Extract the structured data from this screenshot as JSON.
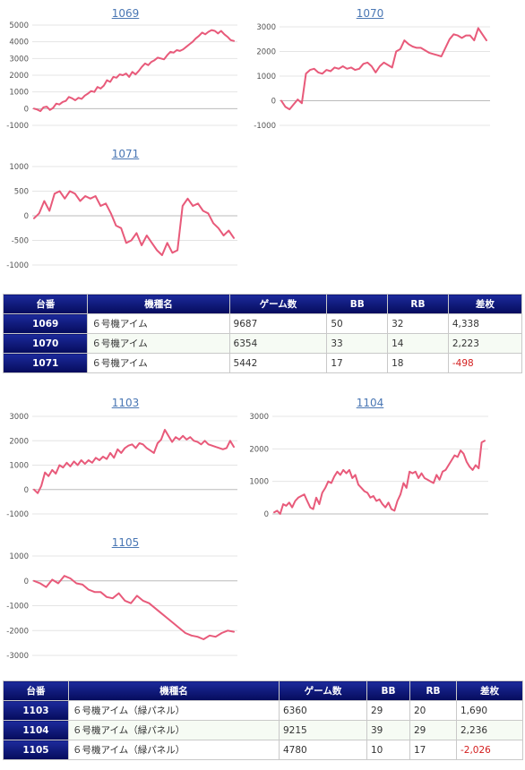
{
  "colors": {
    "line": "#e85a7a",
    "header_bg": "#0b1570",
    "negative": "#d31e1e",
    "title_link": "#4a77b4"
  },
  "section1": {
    "charts": [
      {
        "title": "1069",
        "chart_data": {
          "type": "line",
          "title": "1069",
          "ylim": [
            -1000,
            5000
          ],
          "ticks": [
            "5000",
            "4000",
            "3000",
            "2000",
            "1000",
            "0",
            "-1000"
          ],
          "y": [
            0,
            -50,
            -150,
            80,
            120,
            -80,
            40,
            300,
            250,
            400,
            460,
            700,
            620,
            500,
            650,
            580,
            780,
            900,
            1050,
            1000,
            1300,
            1200,
            1380,
            1700,
            1600,
            1900,
            1850,
            2050,
            2000,
            2100,
            1900,
            2200,
            2050,
            2250,
            2500,
            2700,
            2600,
            2800,
            2900,
            3050,
            3000,
            2950,
            3200,
            3400,
            3350,
            3500,
            3450,
            3550,
            3700,
            3850,
            4000,
            4200,
            4350,
            4550,
            4450,
            4600,
            4700,
            4650,
            4500,
            4650,
            4450,
            4300,
            4100,
            4050
          ]
        },
        "tick_vals": [
          5000,
          4000,
          3000,
          2000,
          1000,
          0,
          -1000
        ]
      },
      {
        "title": "1070",
        "chart_data": {
          "type": "line",
          "title": "1070",
          "ylim": [
            -1000,
            3000
          ],
          "ticks": [
            "3000",
            "2000",
            "1000",
            "0",
            "-1000"
          ],
          "y": [
            0,
            -250,
            -350,
            -150,
            50,
            -100,
            1100,
            1250,
            1300,
            1150,
            1100,
            1250,
            1200,
            1350,
            1300,
            1400,
            1300,
            1350,
            1250,
            1300,
            1500,
            1550,
            1400,
            1150,
            1400,
            1550,
            1450,
            1350,
            2000,
            2100,
            2450,
            2300,
            2200,
            2150,
            2150,
            2050,
            1950,
            1900,
            1850,
            1800,
            2150,
            2500,
            2700,
            2650,
            2550,
            2650,
            2650,
            2450,
            2950,
            2700,
            2450
          ]
        },
        "tick_vals": [
          3000,
          2000,
          1000,
          0,
          -1000
        ]
      },
      {
        "title": "1071",
        "chart_data": {
          "type": "line",
          "title": "1071",
          "ylim": [
            -1000,
            1000
          ],
          "ticks": [
            "1000",
            "500",
            "0",
            "-500",
            "-1000"
          ],
          "y": [
            -50,
            50,
            300,
            100,
            450,
            500,
            350,
            500,
            450,
            300,
            400,
            350,
            400,
            200,
            250,
            50,
            -200,
            -250,
            -550,
            -500,
            -350,
            -600,
            -400,
            -550,
            -700,
            -800,
            -550,
            -750,
            -700,
            200,
            350,
            200,
            250,
            100,
            50,
            -150,
            -250,
            -400,
            -300,
            -450
          ]
        },
        "tick_vals": [
          1000,
          500,
          0,
          -500,
          -1000
        ]
      }
    ],
    "table": {
      "headers": [
        "台番",
        "機種名",
        "ゲーム数",
        "BB",
        "RB",
        "差枚"
      ],
      "rows": [
        {
          "no": "1069",
          "name": "６号機アイム",
          "games": "9687",
          "bb": "50",
          "rb": "32",
          "diff": "4,338"
        },
        {
          "no": "1070",
          "name": "６号機アイム",
          "games": "6354",
          "bb": "33",
          "rb": "14",
          "diff": "2,223"
        },
        {
          "no": "1071",
          "name": "６号機アイム",
          "games": "5442",
          "bb": "17",
          "rb": "18",
          "diff": "-498"
        }
      ]
    }
  },
  "section2": {
    "charts": [
      {
        "title": "1103",
        "chart_data": {
          "type": "line",
          "title": "1103",
          "ylim": [
            -1000,
            3000
          ],
          "ticks": [
            "3000",
            "2000",
            "1000",
            "0",
            "-1000"
          ],
          "y": [
            0,
            -150,
            150,
            700,
            550,
            800,
            650,
            1000,
            900,
            1100,
            950,
            1150,
            1000,
            1200,
            1050,
            1200,
            1100,
            1300,
            1200,
            1350,
            1250,
            1500,
            1300,
            1650,
            1500,
            1700,
            1800,
            1850,
            1700,
            1900,
            1850,
            1700,
            1600,
            1500,
            1900,
            2050,
            2450,
            2200,
            1950,
            2150,
            2050,
            2200,
            2050,
            2150,
            2000,
            1950,
            1850,
            2000,
            1850,
            1800,
            1750,
            1700,
            1650,
            1700,
            2000,
            1750
          ]
        },
        "tick_vals": [
          3000,
          2000,
          1000,
          0,
          -1000
        ]
      },
      {
        "title": "1104",
        "chart_data": {
          "type": "line",
          "title": "1104",
          "ylim": [
            0,
            3000
          ],
          "ticks": [
            "3000",
            "2000",
            "1000",
            "0"
          ],
          "y": [
            50,
            100,
            0,
            300,
            250,
            350,
            200,
            400,
            500,
            550,
            600,
            400,
            200,
            150,
            500,
            300,
            650,
            800,
            1000,
            950,
            1150,
            1300,
            1200,
            1350,
            1250,
            1350,
            1100,
            1200,
            900,
            800,
            700,
            650,
            500,
            550,
            400,
            450,
            300,
            200,
            350,
            150,
            100,
            400,
            600,
            950,
            800,
            1300,
            1250,
            1300,
            1100,
            1250,
            1100,
            1050,
            1000,
            950,
            1200,
            1050,
            1300,
            1350,
            1500,
            1650,
            1800,
            1750,
            1950,
            1850,
            1600,
            1450,
            1350,
            1500,
            1400,
            2200,
            2250
          ]
        },
        "tick_vals": [
          3000,
          2000,
          1000,
          0
        ]
      },
      {
        "title": "1105",
        "chart_data": {
          "type": "line",
          "title": "1105",
          "ylim": [
            -3000,
            1000
          ],
          "ticks": [
            "1000",
            "0",
            "-1000",
            "-2000",
            "-3000"
          ],
          "y": [
            0,
            -100,
            -250,
            50,
            -100,
            200,
            100,
            -100,
            -150,
            -350,
            -450,
            -450,
            -650,
            -700,
            -500,
            -800,
            -900,
            -600,
            -800,
            -900,
            -1100,
            -1300,
            -1500,
            -1700,
            -1900,
            -2100,
            -2200,
            -2250,
            -2350,
            -2200,
            -2250,
            -2100,
            -2000,
            -2050
          ]
        },
        "tick_vals": [
          1000,
          0,
          -1000,
          -2000,
          -3000
        ]
      }
    ],
    "table": {
      "headers": [
        "台番",
        "機種名",
        "ゲーム数",
        "BB",
        "RB",
        "差枚"
      ],
      "rows": [
        {
          "no": "1103",
          "name": "６号機アイム（緑パネル）",
          "games": "6360",
          "bb": "29",
          "rb": "20",
          "diff": "1,690"
        },
        {
          "no": "1104",
          "name": "６号機アイム（緑パネル）",
          "games": "9215",
          "bb": "39",
          "rb": "29",
          "diff": "2,236"
        },
        {
          "no": "1105",
          "name": "６号機アイム（緑パネル）",
          "games": "4780",
          "bb": "10",
          "rb": "17",
          "diff": "-2,026"
        }
      ]
    }
  }
}
